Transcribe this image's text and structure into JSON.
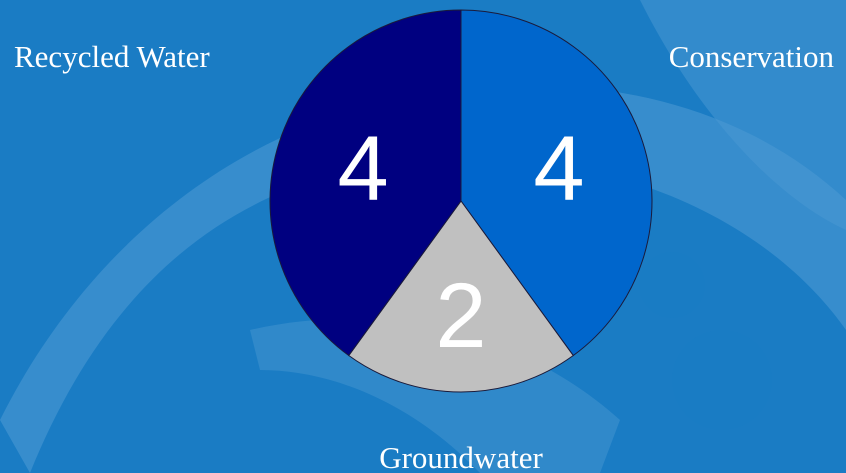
{
  "colors": {
    "background": "#1a7cc4",
    "background_motif": "#4b9ad3",
    "slice_conservation": "#0066cc",
    "slice_groundwater": "#c0c0c0",
    "slice_recycled": "#000080",
    "slice_outline": "#1a1a3a",
    "text": "#ffffff"
  },
  "chart_data": {
    "type": "pie",
    "title": "",
    "categories": [
      "Conservation",
      "Groundwater",
      "Recycled Water"
    ],
    "values": [
      4,
      2,
      4
    ],
    "data_labels": [
      "4",
      "2",
      "4"
    ],
    "start_angle_deg": 0,
    "direction": "clockwise",
    "legend": "none"
  }
}
